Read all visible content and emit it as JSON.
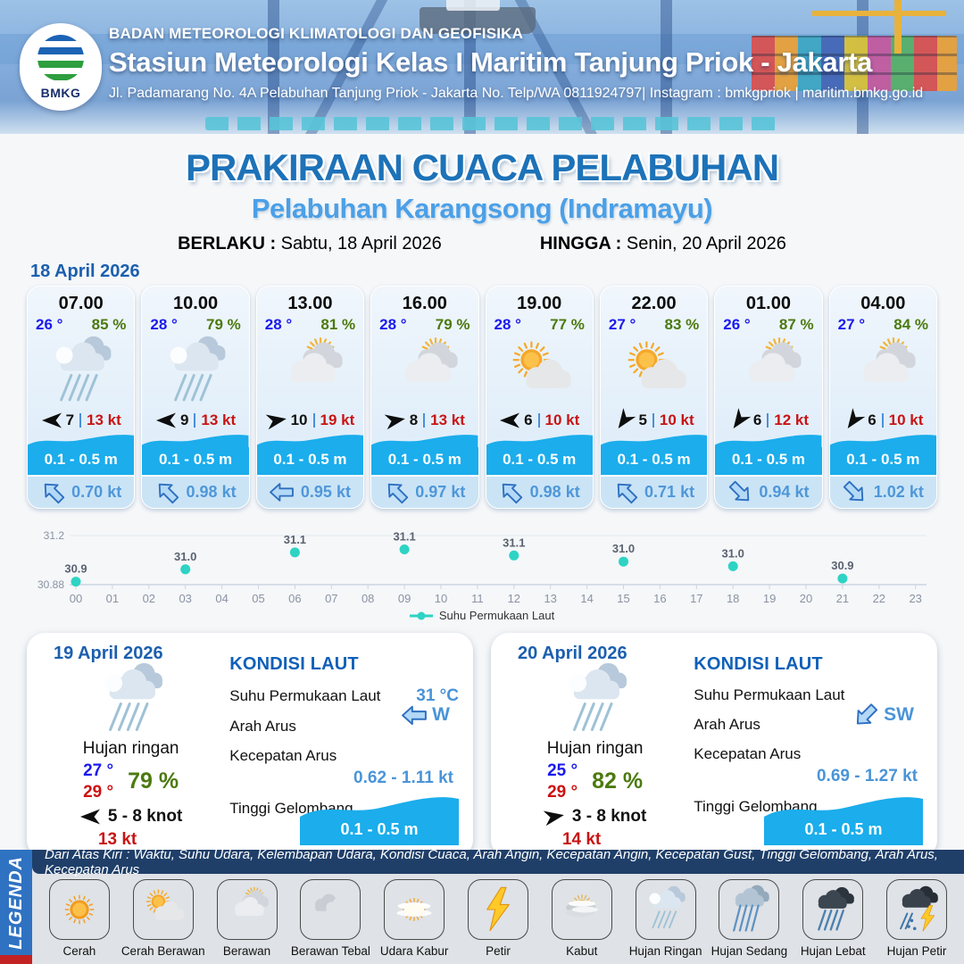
{
  "header": {
    "logo_label": "BMKG",
    "org": "BADAN METEOROLOGI KLIMATOLOGI DAN GEOFISIKA",
    "station": "Stasiun Meteorologi Kelas I Maritim Tanjung Priok - Jakarta",
    "address": "Jl. Padamarang No. 4A Pelabuhan Tanjung Priok - Jakarta No. Telp/WA 0811924797| Instagram : bmkgpriok | maritim.bmkg.go.id"
  },
  "title": {
    "main": "PRAKIRAAN CUACA PELABUHAN",
    "subtitle": "Pelabuhan Karangsong (Indramayu)"
  },
  "validity": {
    "berlaku_label": "BERLAKU :",
    "berlaku_value": "Sabtu, 18 April 2026",
    "hingga_label": "HINGGA :",
    "hingga_value": "Senin, 20 April 2026"
  },
  "forecast_date": "18 April 2026",
  "forecast_cards": [
    {
      "time": "07.00",
      "temp": "26 °",
      "humidity": "85 %",
      "icon": "hujan-ringan",
      "wind_arrow_deg": 0,
      "wind_speed": "7",
      "gust": "13 kt",
      "wave_height": "0.1 - 0.5 m",
      "current_arrow_deg": 45,
      "current_speed": "0.70 kt"
    },
    {
      "time": "10.00",
      "temp": "28 °",
      "humidity": "79 %",
      "icon": "hujan-ringan",
      "wind_arrow_deg": 0,
      "wind_speed": "9",
      "gust": "13 kt",
      "wave_height": "0.1 - 0.5 m",
      "current_arrow_deg": 45,
      "current_speed": "0.98 kt"
    },
    {
      "time": "13.00",
      "temp": "28 °",
      "humidity": "81 %",
      "icon": "berawan",
      "wind_arrow_deg": 170,
      "wind_speed": "10",
      "gust": "19 kt",
      "wave_height": "0.1 - 0.5 m",
      "current_arrow_deg": 0,
      "current_speed": "0.95 kt"
    },
    {
      "time": "16.00",
      "temp": "28 °",
      "humidity": "79 %",
      "icon": "berawan",
      "wind_arrow_deg": 170,
      "wind_speed": "8",
      "gust": "13 kt",
      "wave_height": "0.1 - 0.5 m",
      "current_arrow_deg": 45,
      "current_speed": "0.97 kt"
    },
    {
      "time": "19.00",
      "temp": "28 °",
      "humidity": "77 %",
      "icon": "cerah-berawan",
      "wind_arrow_deg": 0,
      "wind_speed": "6",
      "gust": "10 kt",
      "wave_height": "0.1 - 0.5 m",
      "current_arrow_deg": 45,
      "current_speed": "0.98 kt"
    },
    {
      "time": "22.00",
      "temp": "27 °",
      "humidity": "83 %",
      "icon": "cerah-berawan",
      "wind_arrow_deg": -55,
      "wind_speed": "5",
      "gust": "10 kt",
      "wave_height": "0.1 - 0.5 m",
      "current_arrow_deg": 45,
      "current_speed": "0.71 kt"
    },
    {
      "time": "01.00",
      "temp": "26 °",
      "humidity": "87 %",
      "icon": "berawan",
      "wind_arrow_deg": -55,
      "wind_speed": "6",
      "gust": "12 kt",
      "wave_height": "0.1 - 0.5 m",
      "current_arrow_deg": -135,
      "current_speed": "0.94 kt"
    },
    {
      "time": "04.00",
      "temp": "27 °",
      "humidity": "84 %",
      "icon": "berawan",
      "wind_arrow_deg": -55,
      "wind_speed": "6",
      "gust": "10 kt",
      "wave_height": "0.1 - 0.5 m",
      "current_arrow_deg": -135,
      "current_speed": "1.02 kt"
    }
  ],
  "chart_data": {
    "type": "scatter",
    "series_name": "Suhu Permukaan Laut",
    "x_ticks": [
      "00",
      "01",
      "02",
      "03",
      "04",
      "05",
      "06",
      "07",
      "08",
      "09",
      "10",
      "11",
      "12",
      "13",
      "14",
      "15",
      "16",
      "17",
      "18",
      "19",
      "20",
      "21",
      "22",
      "23"
    ],
    "points": [
      {
        "hour": 0,
        "label": "30.9",
        "value": 30.9
      },
      {
        "hour": 3,
        "label": "31.0",
        "value": 30.98
      },
      {
        "hour": 6,
        "label": "31.1",
        "value": 31.09
      },
      {
        "hour": 9,
        "label": "31.1",
        "value": 31.11
      },
      {
        "hour": 12,
        "label": "31.1",
        "value": 31.07
      },
      {
        "hour": 15,
        "label": "31.0",
        "value": 31.03
      },
      {
        "hour": 18,
        "label": "31.0",
        "value": 31.0
      },
      {
        "hour": 21,
        "label": "30.9",
        "value": 30.92
      }
    ],
    "ylim": [
      30.88,
      31.2
    ],
    "y_axis_labels": [
      "31.2",
      "30.88"
    ],
    "marker_color": "#2ed3c4",
    "grid": "minimal",
    "legend_position": "bottom"
  },
  "daily_cards": [
    {
      "date": "19 April 2026",
      "icon": "hujan-ringan",
      "condition": "Hujan ringan",
      "temp_min": "27 °",
      "temp_max": "29 °",
      "humidity": "79 %",
      "wind_arrow_deg": 0,
      "wind_range": "5  - 8 knot",
      "gust": "13 kt",
      "sea_title": "KONDISI LAUT",
      "sst_label": "Suhu Permukaan Laut",
      "sst_value": "31 °C",
      "current_dir_label": "Arah Arus",
      "current_dir_value": "W",
      "current_arrow_deg": 0,
      "current_speed_label": "Kecepatan Arus",
      "current_speed_value": "0.62  - 1.11 kt",
      "wave_label": "Tinggi Gelombang",
      "wave_value": "0.1 - 0.5 m"
    },
    {
      "date": "20 April 2026",
      "icon": "hujan-ringan",
      "condition": "Hujan ringan",
      "temp_min": "25 °",
      "temp_max": "29 °",
      "humidity": "82 %",
      "wind_arrow_deg": 170,
      "wind_range": "3  - 8 knot",
      "gust": "14 kt",
      "sea_title": "KONDISI LAUT",
      "sst_label": "Suhu Permukaan Laut",
      "sst_value": "",
      "current_dir_label": "Arah Arus",
      "current_dir_value": "SW",
      "current_arrow_deg": -45,
      "current_speed_label": "Kecepatan Arus",
      "current_speed_value": "0.69  - 1.27 kt",
      "wave_label": "Tinggi Gelombang",
      "wave_value": "0.1 - 0.5 m"
    }
  ],
  "legend": {
    "title": "LEGENDA",
    "note": "Dari Atas Kiri : Waktu, Suhu Udara, Kelembapan Udara, Kondisi Cuaca, Arah Angin, Kecepatan Angin, Kecepatan Gust, Tinggi Gelombang, Arah Arus, Kecepatan Arus",
    "items": [
      {
        "icon": "cerah",
        "label": "Cerah"
      },
      {
        "icon": "cerah-berawan",
        "label": "Cerah Berawan"
      },
      {
        "icon": "berawan",
        "label": "Berawan"
      },
      {
        "icon": "berawan-tebal",
        "label": "Berawan Tebal"
      },
      {
        "icon": "udara-kabur",
        "label": "Udara Kabur"
      },
      {
        "icon": "petir",
        "label": "Petir"
      },
      {
        "icon": "kabut",
        "label": "Kabut"
      },
      {
        "icon": "hujan-ringan",
        "label": "Hujan Ringan"
      },
      {
        "icon": "hujan-sedang",
        "label": "Hujan Sedang"
      },
      {
        "icon": "hujan-lebat",
        "label": "Hujan Lebat"
      },
      {
        "icon": "hujan-petir",
        "label": "Hujan Petir"
      }
    ]
  },
  "colors": {
    "title_blue": "#1d72b8",
    "subtitle_blue": "#4aa0e8",
    "temp_blue": "#1a1aee",
    "humidity_green": "#4b7a0e",
    "gust_red": "#c81414",
    "wave_blue": "#1badec",
    "current_text_blue": "#4f97d9",
    "sst_marker_teal": "#2ed3c4",
    "legend_band_blue": "#2f72c2",
    "legend_strip_navy": "#1f3f69"
  }
}
